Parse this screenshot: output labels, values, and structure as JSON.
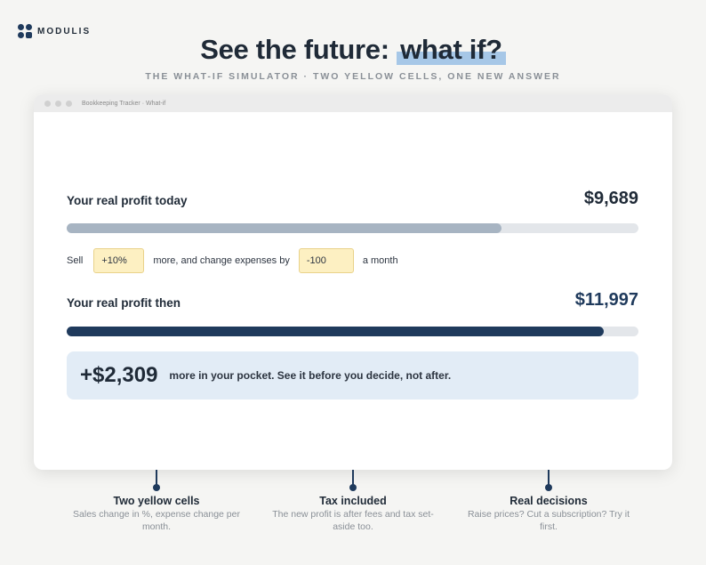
{
  "brand": {
    "name": "MODULIS",
    "color": "#1f3a5c"
  },
  "headline": {
    "prefix": "See the future:",
    "highlight": "what if?"
  },
  "subtitle": "THE WHAT-IF SIMULATOR · TWO YELLOW CELLS, ONE NEW ANSWER",
  "window": {
    "title": "Bookkeeping Tracker · What-if"
  },
  "today": {
    "label": "Your real profit today",
    "value": "$9,689",
    "progress": 0.76,
    "bar_color": "#a7b4c2"
  },
  "controls": {
    "prefix": "Sell",
    "sales_change": "+10%",
    "middle": "more, and change expenses by",
    "expense_change": "-100",
    "suffix": "a month"
  },
  "then": {
    "label": "Your real profit then",
    "value": "$11,997",
    "progress": 0.94,
    "bar_color": "#1f3a5c"
  },
  "result": {
    "amount": "+$2,309",
    "text": "more in your pocket. See it before you decide, not after."
  },
  "callouts": [
    {
      "title": "Two yellow cells",
      "desc": "Sales change in %, expense change per month."
    },
    {
      "title": "Tax included",
      "desc": "The new profit is after fees and tax set-aside too."
    },
    {
      "title": "Real decisions",
      "desc": "Raise prices? Cut a subscription? Try it first."
    }
  ]
}
